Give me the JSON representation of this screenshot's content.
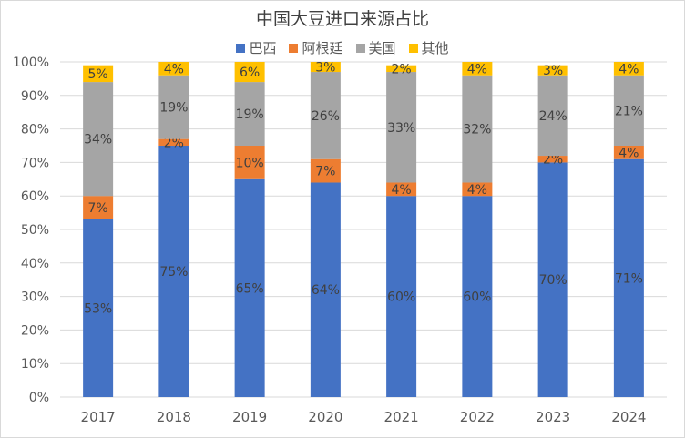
{
  "chart_data": {
    "type": "bar",
    "stacked": true,
    "percent": true,
    "title": "中国大豆进口来源占比",
    "categories": [
      "2017",
      "2018",
      "2019",
      "2020",
      "2021",
      "2022",
      "2023",
      "2024"
    ],
    "series": [
      {
        "name": "巴西",
        "color": "#4472c4",
        "values": [
          53,
          75,
          65,
          64,
          60,
          60,
          70,
          71
        ]
      },
      {
        "name": "阿根廷",
        "color": "#ed7d31",
        "values": [
          7,
          2,
          10,
          7,
          4,
          4,
          2,
          4
        ]
      },
      {
        "name": "美国",
        "color": "#a5a5a5",
        "values": [
          34,
          19,
          19,
          26,
          33,
          32,
          24,
          21
        ]
      },
      {
        "name": "其他",
        "color": "#ffc000",
        "values": [
          5,
          4,
          6,
          3,
          2,
          4,
          3,
          4
        ]
      }
    ],
    "y_ticks": [
      "0%",
      "10%",
      "20%",
      "30%",
      "40%",
      "50%",
      "60%",
      "70%",
      "80%",
      "90%",
      "100%"
    ],
    "ylim": [
      0,
      100
    ],
    "grid": true,
    "legend_position": "top"
  }
}
